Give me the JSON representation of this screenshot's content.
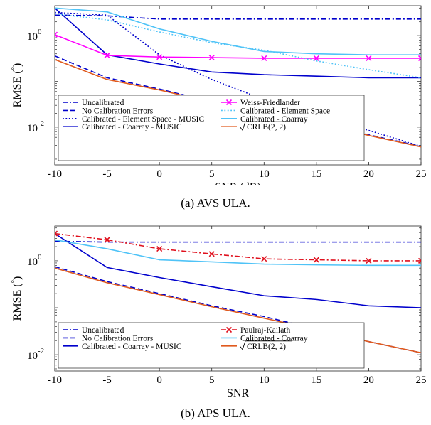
{
  "charts": {
    "a": {
      "caption": "(a) AVS ULA.",
      "xlabel": "SNR (dB)",
      "ylabel": "RMSE (°)",
      "ylabel_pre": "RMSE (",
      "ylabel_unit": "°",
      "ylabel_post": ")",
      "xticks": [
        -10,
        -5,
        0,
        5,
        10,
        15,
        20,
        25
      ],
      "ytick_labels": [
        {
          "base": "10",
          "exp": "-2",
          "value": 0.01
        },
        {
          "base": "10",
          "exp": "0",
          "value": 1
        }
      ],
      "legend": [
        {
          "label": "Uncalibrated",
          "series": "uncal"
        },
        {
          "label": "Weiss-Friedlander",
          "series": "wf"
        },
        {
          "label": "No Calibration Errors",
          "series": "nocal"
        },
        {
          "label": "Calibrated - Element Space",
          "series": "ces"
        },
        {
          "label": "Calibrated - Element Space - MUSIC",
          "series": "cesm"
        },
        {
          "label": "Calibrated - Coarray",
          "series": "cc"
        },
        {
          "label": "Calibrated - Coarray - MUSIC",
          "series": "ccm"
        },
        {
          "label": "√CRLB(2, 2)",
          "series": "crlb",
          "sqrt_arg": "CRLB(2, 2)"
        }
      ]
    },
    "b": {
      "caption": "(b) APS ULA.",
      "xlabel": "SNR",
      "ylabel": "RMSE (°)",
      "ylabel_pre": "RMSE (",
      "ylabel_unit": "°",
      "ylabel_post": ")",
      "xticks": [
        -10,
        -5,
        0,
        5,
        10,
        15,
        20,
        25
      ],
      "ytick_labels": [
        {
          "base": "10",
          "exp": "-2",
          "value": 0.01
        },
        {
          "base": "10",
          "exp": "0",
          "value": 1
        }
      ],
      "legend": [
        {
          "label": "Uncalibrated",
          "series": "uncal"
        },
        {
          "label": "Paulraj-Kailath",
          "series": "pk"
        },
        {
          "label": "No Calibration Errors",
          "series": "nocal"
        },
        {
          "label": "Calibrated - Coarray",
          "series": "cc"
        },
        {
          "label": "Calibrated - Coarray - MUSIC",
          "series": "ccm"
        },
        {
          "label": "√CRLB(2, 2)",
          "series": "crlb",
          "sqrt_arg": "CRLB(2, 2)"
        }
      ]
    }
  },
  "chart_data": [
    {
      "type": "line",
      "title": "",
      "xlabel": "SNR (dB)",
      "ylabel": "RMSE (°)",
      "yscale": "log",
      "xlim": [
        -10,
        25
      ],
      "ylim": [
        0.0015,
        4.5
      ],
      "grid": false,
      "legend_position": "bottom",
      "x": [
        -10,
        -5,
        0,
        5,
        10,
        15,
        20,
        25
      ],
      "series": [
        {
          "key": "uncal",
          "name": "Uncalibrated",
          "color": "#0000cc",
          "dash": "dashdot",
          "marker": "none",
          "values": [
            2.8,
            2.7,
            2.3,
            2.3,
            2.3,
            2.3,
            2.3,
            2.3
          ]
        },
        {
          "key": "nocal",
          "name": "No Calibration Errors",
          "color": "#0000cc",
          "dash": "dashed",
          "marker": "none",
          "values": [
            0.36,
            0.12,
            0.068,
            0.036,
            0.021,
            0.012,
            0.0068,
            0.0038
          ]
        },
        {
          "key": "cesm",
          "name": "Calibrated - Element Space - MUSIC",
          "color": "#0000cc",
          "dash": "dotted",
          "marker": "none",
          "values": [
            3.2,
            2.8,
            0.38,
            0.11,
            0.04,
            0.018,
            0.0085,
            0.0038
          ]
        },
        {
          "key": "ccm",
          "name": "Calibrated - Coarray - MUSIC",
          "color": "#0000cc",
          "dash": "solid",
          "marker": "none",
          "values": [
            4.0,
            0.38,
            0.24,
            0.16,
            0.14,
            0.13,
            0.12,
            0.12
          ]
        },
        {
          "key": "wf",
          "name": "Weiss-Friedlander",
          "color": "#ff00ff",
          "dash": "solid",
          "marker": "x",
          "values": [
            1.05,
            0.37,
            0.34,
            0.33,
            0.32,
            0.32,
            0.32,
            0.32
          ]
        },
        {
          "key": "ces",
          "name": "Calibrated - Element Space",
          "color": "#4fc3f7",
          "dash": "dotted",
          "marker": "none",
          "values": [
            3.0,
            2.2,
            1.2,
            0.7,
            0.48,
            0.28,
            0.18,
            0.12
          ]
        },
        {
          "key": "cc",
          "name": "Calibrated - Coarray",
          "color": "#4fc3f7",
          "dash": "solid",
          "marker": "none",
          "values": [
            4.0,
            3.3,
            1.4,
            0.75,
            0.45,
            0.4,
            0.38,
            0.38
          ]
        },
        {
          "key": "crlb",
          "name": "√CRLB(2, 2)",
          "color": "#e05a1e",
          "dash": "solid",
          "marker": "none",
          "values": [
            0.3,
            0.11,
            0.065,
            0.035,
            0.02,
            0.012,
            0.0066,
            0.0037
          ]
        }
      ]
    },
    {
      "type": "line",
      "title": "",
      "xlabel": "SNR",
      "ylabel": "RMSE (°)",
      "yscale": "log",
      "xlim": [
        -10,
        25
      ],
      "ylim": [
        0.0045,
        5.5
      ],
      "grid": false,
      "legend_position": "bottom",
      "x": [
        -10,
        -5,
        0,
        5,
        10,
        15,
        20,
        25
      ],
      "series": [
        {
          "key": "uncal",
          "name": "Uncalibrated",
          "color": "#0000cc",
          "dash": "dashdot",
          "marker": "none",
          "values": [
            2.6,
            2.5,
            2.5,
            2.5,
            2.5,
            2.5,
            2.5,
            2.5
          ]
        },
        {
          "key": "nocal",
          "name": "No Calibration Errors",
          "color": "#0000cc",
          "dash": "dashed",
          "marker": "none",
          "values": [
            0.75,
            0.36,
            0.2,
            0.11,
            0.065,
            0.035,
            0.019,
            0.011
          ]
        },
        {
          "key": "ccm",
          "name": "Calibrated - Coarray - MUSIC",
          "color": "#0000cc",
          "dash": "solid",
          "marker": "none",
          "values": [
            3.8,
            0.72,
            0.44,
            0.28,
            0.18,
            0.15,
            0.11,
            0.1
          ]
        },
        {
          "key": "pk",
          "name": "Paulraj-Kailath",
          "color": "#e0111e",
          "dash": "dashdot",
          "marker": "x",
          "values": [
            3.8,
            2.8,
            1.8,
            1.4,
            1.1,
            1.05,
            1.0,
            1.0
          ]
        },
        {
          "key": "cc",
          "name": "Calibrated - Coarray",
          "color": "#4fc3f7",
          "dash": "solid",
          "marker": "none",
          "values": [
            2.8,
            1.8,
            1.05,
            0.95,
            0.85,
            0.82,
            0.8,
            0.8
          ]
        },
        {
          "key": "crlb",
          "name": "√CRLB(2, 2)",
          "color": "#e05a1e",
          "dash": "solid",
          "marker": "none",
          "values": [
            0.7,
            0.34,
            0.19,
            0.105,
            0.06,
            0.034,
            0.019,
            0.011
          ]
        }
      ]
    }
  ]
}
